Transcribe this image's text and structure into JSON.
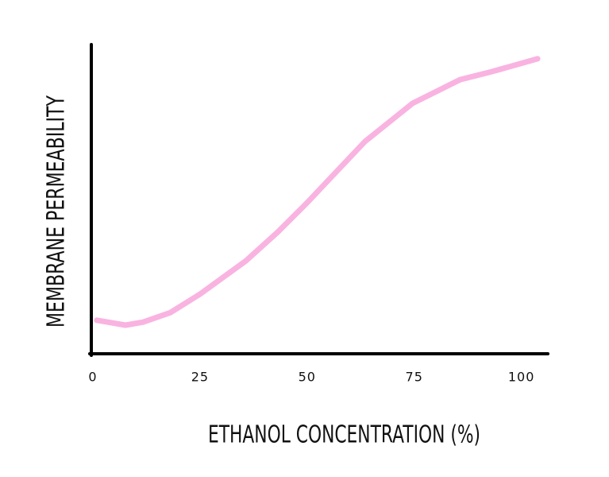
{
  "chart_data": {
    "type": "line",
    "x_label": "ETHANOL CONCENTRATION (%)",
    "y_label": "MEMBRANE PERMEABILITY",
    "x": [
      0.9,
      4.3,
      7.6,
      11.7,
      18.1,
      25,
      35.7,
      43.1,
      50,
      56.1,
      63.5,
      74.6,
      85.7,
      93.1,
      103.8
    ],
    "values": [
      10.9,
      10.1,
      9.3,
      10.3,
      13.4,
      19.4,
      30.2,
      39.5,
      49.1,
      58.1,
      69.0,
      81.4,
      89.1,
      91.7,
      95.9
    ],
    "color": "#f9b3e1",
    "xlim": [
      0,
      106
    ],
    "xticks": [
      0,
      25,
      50,
      75,
      100
    ],
    "ylim": [
      0,
      100
    ]
  }
}
